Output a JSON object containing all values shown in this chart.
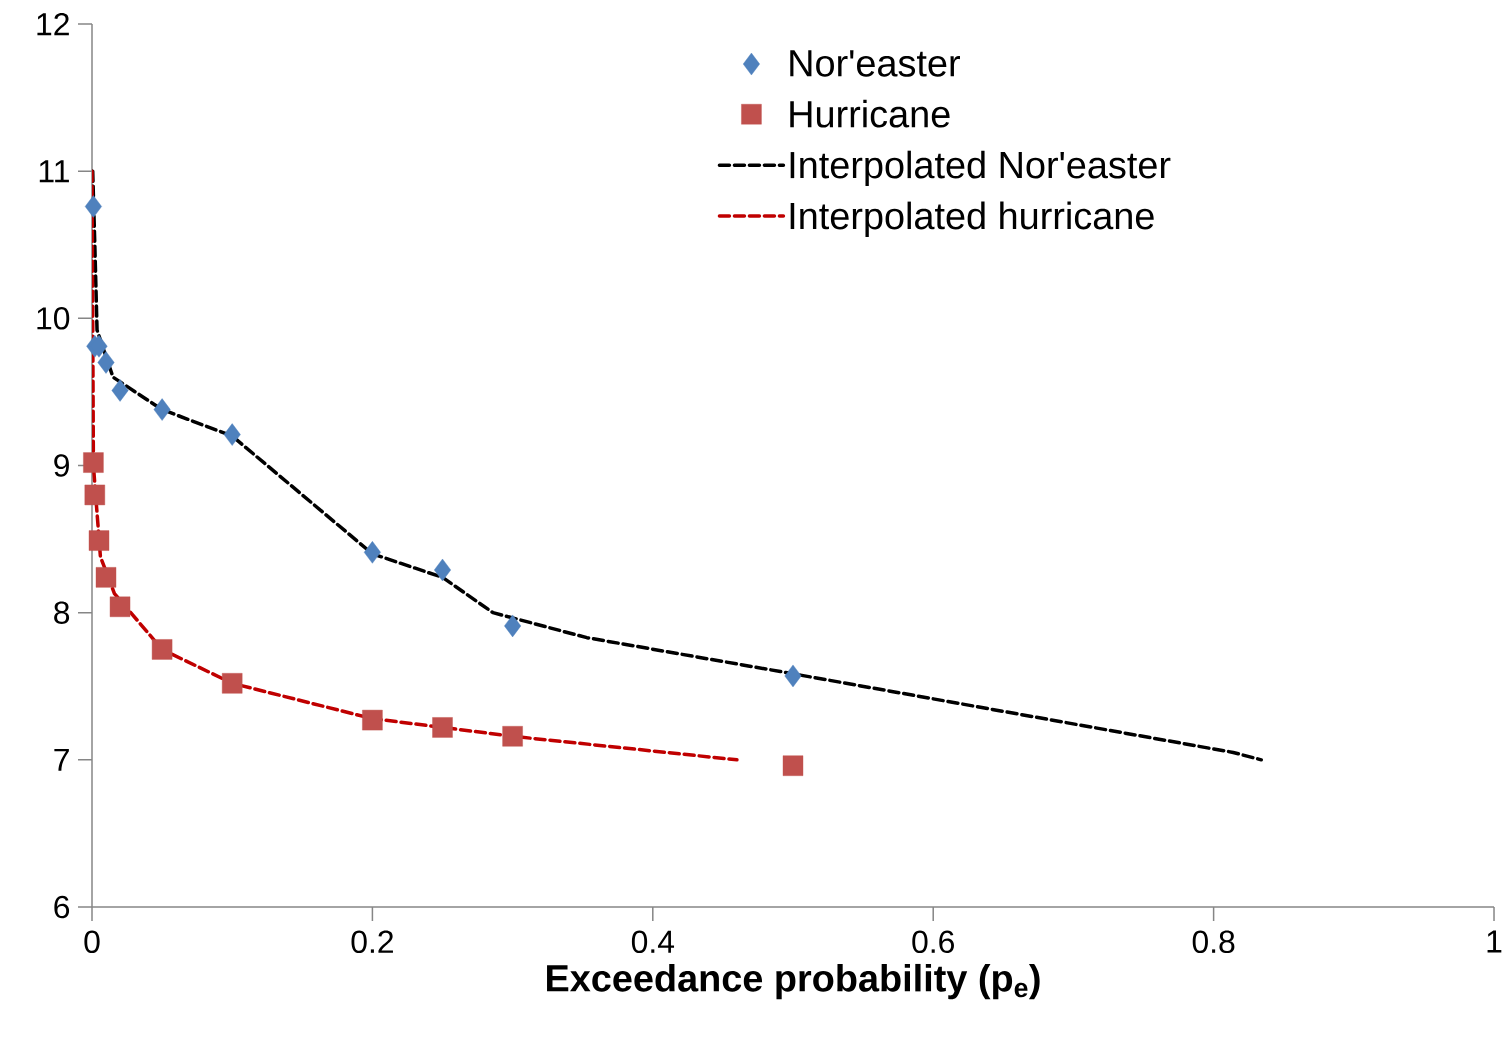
{
  "chart_data": {
    "type": "scatter",
    "xlabel": "Exceedance probability (p$_{e}$)",
    "xlim": [
      0,
      1
    ],
    "ylim": [
      6,
      12
    ],
    "xticks": [
      0,
      0.2,
      0.4,
      0.6,
      0.8,
      1
    ],
    "yticks": [
      6,
      7,
      8,
      9,
      10,
      11,
      12
    ],
    "grid": false,
    "legend": "top right",
    "series": [
      {
        "name": "Nor'easter",
        "type": "scatter",
        "marker": "diamond",
        "color": "#4f81bd",
        "x": [
          0.001,
          0.002,
          0.005,
          0.01,
          0.02,
          0.05,
          0.1,
          0.2,
          0.25,
          0.3,
          0.5
        ],
        "values": [
          10.76,
          9.81,
          9.81,
          9.7,
          9.51,
          9.38,
          9.21,
          8.41,
          8.29,
          7.91,
          7.57
        ]
      },
      {
        "name": "Hurricane",
        "type": "scatter",
        "marker": "square",
        "color": "#c0504d",
        "x": [
          0.001,
          0.002,
          0.005,
          0.01,
          0.02,
          0.05,
          0.1,
          0.2,
          0.25,
          0.3,
          0.5
        ],
        "values": [
          9.02,
          8.8,
          8.49,
          8.24,
          8.04,
          7.75,
          7.52,
          7.27,
          7.22,
          7.16,
          6.96
        ]
      },
      {
        "name": "Interpolated Nor'easter",
        "type": "line",
        "marker": "none",
        "line_style": "dashed",
        "color": "#000000",
        "x": [
          0.0005,
          0.002,
          0.0036,
          0.015,
          0.05,
          0.1,
          0.2,
          0.25,
          0.286,
          0.353,
          0.491,
          0.814,
          0.834
        ],
        "values": [
          11,
          10.5,
          9.92,
          9.6,
          9.38,
          9.2,
          8.4,
          8.24,
          8.0,
          7.83,
          7.6,
          7.05,
          7.0
        ]
      },
      {
        "name": "Interpolated hurricane",
        "type": "line",
        "marker": "none",
        "line_style": "dashed",
        "color": "#c00000",
        "x": [
          0,
          0.0005,
          0.001,
          0.006,
          0.016,
          0.05,
          0.1,
          0.2,
          0.25,
          0.3,
          0.46
        ],
        "values": [
          11,
          10.0,
          9.0,
          8.38,
          8.13,
          7.75,
          7.52,
          7.28,
          7.22,
          7.16,
          7.0
        ]
      }
    ]
  }
}
